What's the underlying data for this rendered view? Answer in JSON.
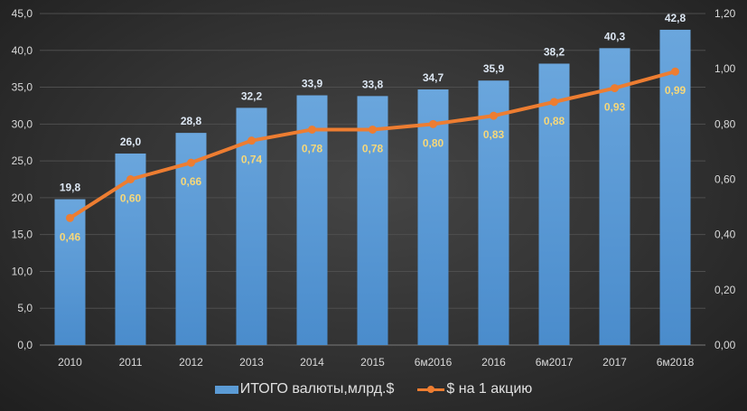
{
  "chart_data": {
    "type": "bar+line",
    "categories": [
      "2010",
      "2011",
      "2012",
      "2013",
      "2014",
      "2015",
      "6м2016",
      "2016",
      "6м2017",
      "2017",
      "6м2018"
    ],
    "series": [
      {
        "name": "ИТОГО валюты,млрд.$",
        "type": "bar",
        "axis": "left",
        "values": [
          19.8,
          26.0,
          28.8,
          32.2,
          33.9,
          33.8,
          34.7,
          35.9,
          38.2,
          40.3,
          42.8
        ],
        "labels": [
          "19,8",
          "26,0",
          "28,8",
          "32,2",
          "33,9",
          "33,8",
          "34,7",
          "35,9",
          "38,2",
          "40,3",
          "42,8"
        ],
        "color": "#5b9bd5"
      },
      {
        "name": "$ на 1 акцию",
        "type": "line",
        "axis": "right",
        "values": [
          0.46,
          0.6,
          0.66,
          0.74,
          0.78,
          0.78,
          0.8,
          0.83,
          0.88,
          0.93,
          0.99
        ],
        "labels": [
          "0,46",
          "0,60",
          "0,66",
          "0,74",
          "0,78",
          "0,78",
          "0,80",
          "0,83",
          "0,88",
          "0,93",
          "0,99"
        ],
        "color": "#ed7d31"
      }
    ],
    "y_left": {
      "range": [
        0,
        45
      ],
      "ticks": [
        "0,0",
        "5,0",
        "10,0",
        "15,0",
        "20,0",
        "25,0",
        "30,0",
        "35,0",
        "40,0",
        "45,0"
      ]
    },
    "y_right": {
      "range": [
        0,
        1.2
      ],
      "ticks": [
        "0,00",
        "0,20",
        "0,40",
        "0,60",
        "0,80",
        "1,00",
        "1,20"
      ]
    },
    "grid": true,
    "legend_position": "bottom"
  }
}
